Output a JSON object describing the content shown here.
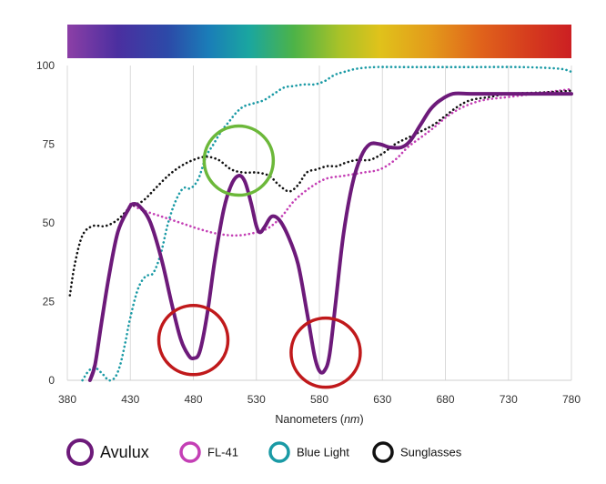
{
  "chart_data": {
    "type": "line",
    "title": "",
    "xlabel": "Nanometers",
    "xlabel_unit": "nm",
    "ylabel": "",
    "xlim": [
      380,
      780
    ],
    "ylim": [
      0,
      100
    ],
    "x_ticks": [
      "380",
      "430",
      "480",
      "530",
      "580",
      "630",
      "680",
      "730",
      "780"
    ],
    "y_ticks": [
      "0",
      "25",
      "50",
      "75",
      "100"
    ],
    "grid": "vertical",
    "legend_position": "bottom",
    "spectrum_bar": true,
    "series": [
      {
        "name": "Avulux",
        "color": "#6d1a7a",
        "style": "solid",
        "points": [
          [
            398,
            0
          ],
          [
            402,
            5
          ],
          [
            407,
            18
          ],
          [
            413,
            33
          ],
          [
            420,
            47
          ],
          [
            428,
            54
          ],
          [
            432,
            56
          ],
          [
            438,
            55
          ],
          [
            446,
            50
          ],
          [
            455,
            38
          ],
          [
            463,
            24
          ],
          [
            470,
            13
          ],
          [
            476,
            8
          ],
          [
            480,
            7
          ],
          [
            485,
            9
          ],
          [
            491,
            21
          ],
          [
            497,
            38
          ],
          [
            504,
            54
          ],
          [
            510,
            62
          ],
          [
            516,
            65
          ],
          [
            521,
            63
          ],
          [
            526,
            56
          ],
          [
            530,
            49
          ],
          [
            533,
            47
          ],
          [
            537,
            49
          ],
          [
            542,
            52
          ],
          [
            548,
            51
          ],
          [
            555,
            46
          ],
          [
            563,
            37
          ],
          [
            570,
            22
          ],
          [
            576,
            8
          ],
          [
            580,
            3
          ],
          [
            584,
            3
          ],
          [
            588,
            8
          ],
          [
            593,
            25
          ],
          [
            599,
            46
          ],
          [
            606,
            62
          ],
          [
            613,
            71
          ],
          [
            620,
            75
          ],
          [
            628,
            75
          ],
          [
            636,
            74
          ],
          [
            645,
            74
          ],
          [
            652,
            76
          ],
          [
            660,
            81
          ],
          [
            668,
            86
          ],
          [
            676,
            89
          ],
          [
            686,
            91
          ],
          [
            700,
            91
          ],
          [
            730,
            91
          ],
          [
            760,
            91
          ],
          [
            780,
            91
          ]
        ]
      },
      {
        "name": "FL-41",
        "color": "#c43fb5",
        "style": "dotted",
        "points": [
          [
            430,
            56
          ],
          [
            440,
            54
          ],
          [
            455,
            52
          ],
          [
            470,
            50
          ],
          [
            485,
            48
          ],
          [
            500,
            46.5
          ],
          [
            515,
            46
          ],
          [
            530,
            47
          ],
          [
            540,
            48.5
          ],
          [
            550,
            52
          ],
          [
            560,
            57
          ],
          [
            572,
            61
          ],
          [
            585,
            64
          ],
          [
            600,
            65
          ],
          [
            615,
            66
          ],
          [
            628,
            67
          ],
          [
            640,
            70
          ],
          [
            650,
            74
          ],
          [
            660,
            77
          ],
          [
            670,
            80
          ],
          [
            682,
            84
          ],
          [
            695,
            87
          ],
          [
            710,
            89
          ],
          [
            730,
            90
          ],
          [
            760,
            91.5
          ],
          [
            780,
            92.5
          ]
        ]
      },
      {
        "name": "Blue Light",
        "color": "#1a9aa5",
        "style": "dotted",
        "points": [
          [
            392,
            0
          ],
          [
            397,
            3
          ],
          [
            402,
            4
          ],
          [
            408,
            2
          ],
          [
            413,
            0
          ],
          [
            418,
            1
          ],
          [
            422,
            5
          ],
          [
            426,
            12
          ],
          [
            430,
            20
          ],
          [
            436,
            29
          ],
          [
            442,
            33
          ],
          [
            448,
            34
          ],
          [
            454,
            40
          ],
          [
            460,
            50
          ],
          [
            466,
            57
          ],
          [
            472,
            61
          ],
          [
            478,
            61
          ],
          [
            484,
            64
          ],
          [
            490,
            71
          ],
          [
            496,
            75
          ],
          [
            502,
            79
          ],
          [
            508,
            82
          ],
          [
            514,
            85
          ],
          [
            520,
            87
          ],
          [
            528,
            88
          ],
          [
            536,
            89
          ],
          [
            544,
            91
          ],
          [
            552,
            93
          ],
          [
            560,
            93.5
          ],
          [
            568,
            94
          ],
          [
            576,
            94
          ],
          [
            584,
            95
          ],
          [
            592,
            97
          ],
          [
            600,
            98
          ],
          [
            610,
            99
          ],
          [
            625,
            99.5
          ],
          [
            650,
            99.5
          ],
          [
            700,
            99.5
          ],
          [
            740,
            99.5
          ],
          [
            770,
            99
          ],
          [
            780,
            98
          ]
        ]
      },
      {
        "name": "Sunglasses",
        "color": "#111111",
        "style": "dotted",
        "points": [
          [
            382,
            27
          ],
          [
            386,
            37
          ],
          [
            392,
            46
          ],
          [
            400,
            49
          ],
          [
            410,
            49
          ],
          [
            420,
            51
          ],
          [
            430,
            55
          ],
          [
            440,
            57
          ],
          [
            450,
            61
          ],
          [
            460,
            65
          ],
          [
            470,
            68
          ],
          [
            480,
            70
          ],
          [
            490,
            71
          ],
          [
            500,
            70
          ],
          [
            510,
            67
          ],
          [
            520,
            66
          ],
          [
            530,
            66
          ],
          [
            540,
            65
          ],
          [
            548,
            62
          ],
          [
            556,
            60
          ],
          [
            563,
            62
          ],
          [
            570,
            66
          ],
          [
            578,
            67
          ],
          [
            586,
            68
          ],
          [
            594,
            68
          ],
          [
            600,
            69
          ],
          [
            610,
            70
          ],
          [
            620,
            70
          ],
          [
            630,
            72
          ],
          [
            640,
            75
          ],
          [
            650,
            77
          ],
          [
            660,
            79
          ],
          [
            670,
            81
          ],
          [
            680,
            84
          ],
          [
            690,
            87
          ],
          [
            700,
            89
          ],
          [
            715,
            90
          ],
          [
            730,
            91
          ],
          [
            760,
            91.5
          ],
          [
            780,
            92
          ]
        ]
      }
    ],
    "annotations": [
      {
        "type": "circle",
        "color": "#c0191b",
        "center": [
          480,
          7
        ]
      },
      {
        "type": "circle",
        "color": "#c0191b",
        "center": [
          585,
          3
        ]
      },
      {
        "type": "circle",
        "color": "#6cb83a",
        "center": [
          516,
          64
        ]
      }
    ],
    "legend": [
      {
        "label": "Avulux",
        "color": "#6d1a7a"
      },
      {
        "label": "FL-41",
        "color": "#c43fb5"
      },
      {
        "label": "Blue Light",
        "color": "#1a9aa5"
      },
      {
        "label": "Sunglasses",
        "color": "#111111"
      }
    ]
  }
}
